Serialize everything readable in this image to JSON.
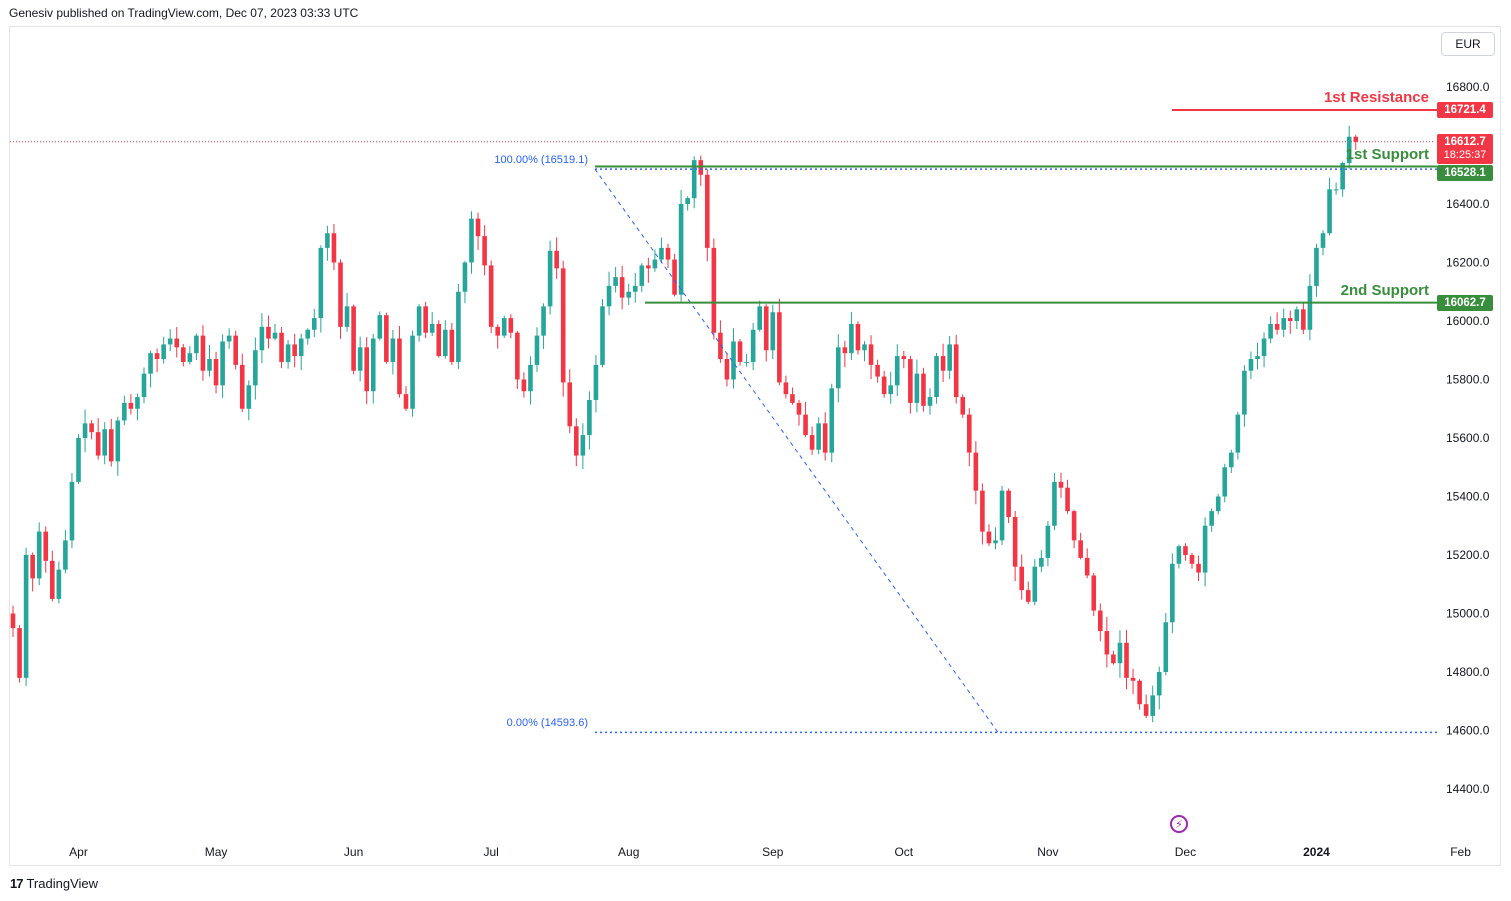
{
  "header": {
    "publish_line": "Genesiv published on TradingView.com, Dec 07, 2023 03:33 UTC"
  },
  "currency": "EUR",
  "footer": {
    "brand": "TradingView",
    "logo_glyph": "17"
  },
  "levels": {
    "resistance1": {
      "label": "1st Resistance",
      "value": "16721.4",
      "price": 16721.4,
      "color": "#f23645"
    },
    "support1": {
      "label": "1st Support",
      "value": "16528.1",
      "price": 16528.1,
      "color": "#388e3c"
    },
    "support2": {
      "label": "2nd Support",
      "value": "16062.7",
      "price": 16062.7,
      "color": "#388e3c"
    }
  },
  "current_price": {
    "value": "16612.7",
    "countdown": "18:25:37",
    "price": 16612.7,
    "color": "#f23645"
  },
  "fib": {
    "high_label": "100.00% (16519.1)",
    "high_price": 16519.1,
    "low_label": "0.00% (14593.6)",
    "low_price": 14593.6,
    "color": "#2962ff"
  },
  "colors": {
    "up": "#26a69a",
    "down": "#f23645",
    "grid": "#f0f3fa",
    "axis_text": "#131722"
  },
  "chart_data": {
    "type": "candlestick",
    "title": "",
    "y_ticks": [
      16800,
      16600,
      16400,
      16200,
      16000,
      15800,
      15600,
      15400,
      15200,
      15000,
      14800,
      14600,
      14400
    ],
    "y_tick_labels": [
      "16800.0",
      "16600.0",
      "16400.0",
      "16200.0",
      "16000.0",
      "15800.0",
      "15600.0",
      "15400.0",
      "15200.0",
      "15000.0",
      "14800.0",
      "14600.0",
      "14400.0"
    ],
    "x_ticks": [
      {
        "label": "Apr",
        "index": 10
      },
      {
        "label": "May",
        "index": 31
      },
      {
        "label": "Jun",
        "index": 52
      },
      {
        "label": "Jul",
        "index": 73
      },
      {
        "label": "Aug",
        "index": 94
      },
      {
        "label": "Sep",
        "index": 116
      },
      {
        "label": "Oct",
        "index": 136
      },
      {
        "label": "Nov",
        "index": 158
      },
      {
        "label": "Dec",
        "index": 179
      },
      {
        "label": "2024",
        "index": 199
      },
      {
        "label": "Feb",
        "index": 221
      }
    ],
    "ylim": [
      14300,
      16980
    ],
    "closes": [
      14950,
      14780,
      15200,
      15120,
      15280,
      15180,
      15050,
      15150,
      15250,
      15450,
      15600,
      15650,
      15620,
      15540,
      15630,
      15520,
      15660,
      15720,
      15700,
      15740,
      15820,
      15890,
      15870,
      15920,
      15940,
      15910,
      15860,
      15890,
      15950,
      15830,
      15870,
      15780,
      15930,
      15950,
      15850,
      15700,
      15780,
      15900,
      15980,
      15940,
      15960,
      15860,
      15920,
      15880,
      15940,
      15970,
      16010,
      16250,
      16300,
      16200,
      15980,
      16050,
      15830,
      15910,
      15760,
      15940,
      16020,
      15860,
      15940,
      15750,
      15700,
      15950,
      16050,
      15960,
      15990,
      15880,
      15970,
      15860,
      16100,
      16200,
      16350,
      16290,
      16190,
      15980,
      15950,
      16010,
      15960,
      15800,
      15760,
      15850,
      15950,
      16050,
      16240,
      16180,
      15790,
      15640,
      15540,
      15610,
      15730,
      15850,
      16050,
      16120,
      16150,
      16080,
      16100,
      16120,
      16190,
      16180,
      16210,
      16250,
      16210,
      16090,
      16400,
      16420,
      16550,
      16500,
      16250,
      15960,
      15870,
      15800,
      15930,
      15860,
      15860,
      15970,
      16050,
      15900,
      16030,
      15790,
      15750,
      15720,
      15680,
      15610,
      15560,
      15650,
      15550,
      15770,
      15910,
      15890,
      15990,
      15900,
      15920,
      15850,
      15810,
      15750,
      15780,
      15880,
      15870,
      15720,
      15820,
      15710,
      15740,
      15880,
      15830,
      15920,
      15740,
      15680,
      15550,
      15420,
      15280,
      15240,
      15250,
      15420,
      15330,
      15160,
      15080,
      15040,
      15160,
      15190,
      15300,
      15450,
      15430,
      15350,
      15250,
      15190,
      15130,
      15010,
      14940,
      14860,
      14830,
      14900,
      14780,
      14770,
      14690,
      14650,
      14720,
      14800,
      14970,
      15170,
      15230,
      15200,
      15170,
      15140,
      15300,
      15350,
      15400,
      15500,
      15550,
      15680,
      15830,
      15870,
      15880,
      15940,
      15990,
      15970,
      16010,
      16000,
      16040,
      15970,
      16120,
      16250,
      16300,
      16450,
      16450,
      16540,
      16630,
      16612.7
    ],
    "opens_first": 15000,
    "wick_scale": 45,
    "first_candle_index_offset": 0
  }
}
